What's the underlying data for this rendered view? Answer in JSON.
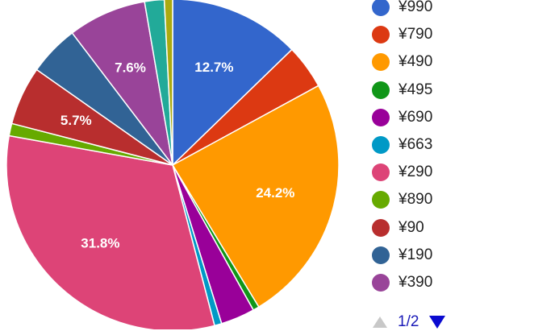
{
  "chart_data": {
    "type": "pie",
    "slices": [
      {
        "label": "¥990",
        "value": 12.7,
        "color": "#3366cc",
        "data_label": "12.7%"
      },
      {
        "label": "¥790",
        "value": 4.3,
        "color": "#dc3912",
        "data_label": ""
      },
      {
        "label": "¥490",
        "value": 24.2,
        "color": "#ff9900",
        "data_label": "24.2%"
      },
      {
        "label": "¥495",
        "value": 0.6,
        "color": "#109618",
        "data_label": ""
      },
      {
        "label": "¥690",
        "value": 3.3,
        "color": "#990099",
        "data_label": ""
      },
      {
        "label": "¥663",
        "value": 0.7,
        "color": "#0099c6",
        "data_label": ""
      },
      {
        "label": "¥290",
        "value": 31.8,
        "color": "#dd4477",
        "data_label": "31.8%"
      },
      {
        "label": "¥890",
        "value": 1.2,
        "color": "#66aa00",
        "data_label": ""
      },
      {
        "label": "¥90",
        "value": 5.7,
        "color": "#b82e2e",
        "data_label": "5.7%"
      },
      {
        "label": "¥190",
        "value": 4.9,
        "color": "#316395",
        "data_label": ""
      },
      {
        "label": "¥390",
        "value": 7.6,
        "color": "#994499",
        "data_label": "7.6%"
      },
      {
        "label": "",
        "value": 1.9,
        "color": "#22aa99",
        "data_label": ""
      },
      {
        "label": "",
        "value": 0.8,
        "color": "#aaaa11",
        "data_label": ""
      }
    ],
    "legend": {
      "position": "right",
      "items": [
        "¥990",
        "¥790",
        "¥490",
        "¥495",
        "¥690",
        "¥663",
        "¥290",
        "¥890",
        "¥90",
        "¥190",
        "¥390"
      ],
      "colors": [
        "#3366cc",
        "#dc3912",
        "#ff9900",
        "#109618",
        "#990099",
        "#0099c6",
        "#dd4477",
        "#66aa00",
        "#b82e2e",
        "#316395",
        "#994499"
      ]
    },
    "pagination": "1/2"
  }
}
